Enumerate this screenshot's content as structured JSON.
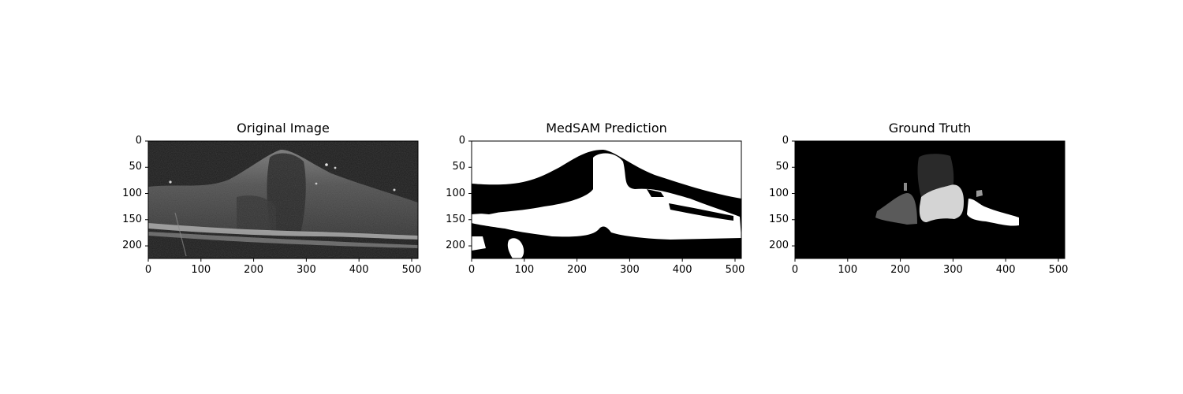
{
  "figure": {
    "panels": [
      {
        "title": "Original Image",
        "kind": "oct-scan",
        "x_ticks": [
          "0",
          "100",
          "200",
          "300",
          "400",
          "500"
        ],
        "y_ticks": [
          "0",
          "50",
          "100",
          "150",
          "200"
        ]
      },
      {
        "title": "MedSAM Prediction",
        "kind": "binary-mask",
        "x_ticks": [
          "0",
          "100",
          "200",
          "300",
          "400",
          "500"
        ],
        "y_ticks": [
          "0",
          "50",
          "100",
          "150",
          "200"
        ]
      },
      {
        "title": "Ground Truth",
        "kind": "label-mask",
        "x_ticks": [
          "0",
          "100",
          "200",
          "300",
          "400",
          "500"
        ],
        "y_ticks": [
          "0",
          "50",
          "100",
          "150",
          "200"
        ]
      }
    ],
    "axis_range": {
      "x": [
        0,
        512
      ],
      "y": [
        0,
        224
      ]
    },
    "colors": {
      "background": "#ffffff",
      "mask_fg": "#ffffff",
      "mask_bg": "#000000"
    }
  }
}
